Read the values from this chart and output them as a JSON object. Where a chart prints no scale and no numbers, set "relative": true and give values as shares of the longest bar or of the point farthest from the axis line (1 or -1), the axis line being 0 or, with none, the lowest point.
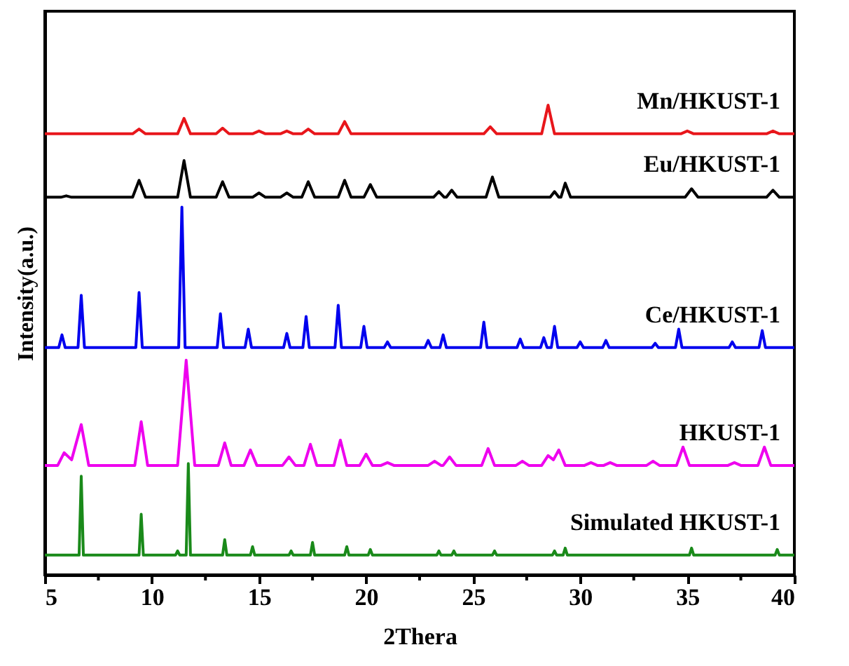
{
  "chart_data": {
    "type": "line",
    "relative": true,
    "xlabel": "2Thera",
    "ylabel": "Intensity(a.u.)",
    "xlim": [
      5,
      40
    ],
    "xticks": [
      5,
      {
        "value": 7.5,
        "label": null
      },
      10,
      {
        "value": 12.5,
        "label": null
      },
      15,
      {
        "value": 17.5,
        "label": null
      },
      20,
      {
        "value": 22.5,
        "label": null
      },
      25,
      {
        "value": 27.5,
        "label": null
      },
      30,
      {
        "value": 32.5,
        "label": null
      },
      35,
      {
        "value": 37.5,
        "label": null
      },
      40
    ],
    "tick_labels": "x",
    "grid": false,
    "legend": false,
    "marker": "none",
    "line_style": "solid",
    "series": [
      {
        "name": "Mn/HKUST-1",
        "color": "#e8161b",
        "x": [
          5,
          9.1,
          9.4,
          9.7,
          11.2,
          11.5,
          11.8,
          13.0,
          13.3,
          13.6,
          14.7,
          15.0,
          15.3,
          16.0,
          16.3,
          16.6,
          17.0,
          17.3,
          17.6,
          18.7,
          19.0,
          19.3,
          25.5,
          25.8,
          26.1,
          28.2,
          28.5,
          28.8,
          34.7,
          35.0,
          35.3,
          38.7,
          39.0,
          39.3,
          40
        ],
        "values": [
          0.939,
          0.939,
          0.949,
          0.939,
          0.939,
          0.972,
          0.939,
          0.939,
          0.951,
          0.939,
          0.939,
          0.945,
          0.939,
          0.939,
          0.945,
          0.939,
          0.939,
          0.949,
          0.939,
          0.939,
          0.965,
          0.939,
          0.939,
          0.954,
          0.939,
          0.939,
          1.0,
          0.939,
          0.939,
          0.945,
          0.939,
          0.939,
          0.945,
          0.939,
          0.939
        ]
      },
      {
        "name": "Eu/HKUST-1",
        "color": "#000000",
        "x": [
          5,
          5.75,
          6.0,
          6.25,
          9.1,
          9.4,
          9.7,
          11.2,
          11.5,
          11.8,
          13.0,
          13.3,
          13.6,
          14.7,
          15.0,
          15.3,
          16.0,
          16.3,
          16.6,
          17.0,
          17.3,
          17.6,
          18.7,
          19.0,
          19.3,
          19.9,
          20.2,
          20.5,
          23.15,
          23.4,
          23.65,
          23.75,
          24.0,
          24.25,
          25.6,
          25.9,
          26.2,
          28.6,
          28.8,
          29.0,
          29.1,
          29.3,
          29.55,
          34.9,
          35.2,
          35.5,
          38.7,
          39.0,
          39.3,
          40
        ],
        "values": [
          0.804,
          0.804,
          0.807,
          0.804,
          0.804,
          0.84,
          0.804,
          0.804,
          0.882,
          0.804,
          0.804,
          0.837,
          0.804,
          0.804,
          0.813,
          0.804,
          0.804,
          0.813,
          0.804,
          0.804,
          0.837,
          0.804,
          0.804,
          0.84,
          0.804,
          0.804,
          0.831,
          0.804,
          0.804,
          0.816,
          0.804,
          0.804,
          0.819,
          0.804,
          0.804,
          0.847,
          0.804,
          0.804,
          0.816,
          0.804,
          0.804,
          0.834,
          0.804,
          0.804,
          0.822,
          0.804,
          0.804,
          0.819,
          0.804,
          0.804
        ]
      },
      {
        "name": "Ce/HKUST-1",
        "color": "#0000ee",
        "x": [
          5,
          5.65,
          5.8,
          5.95,
          6.55,
          6.7,
          6.85,
          9.25,
          9.4,
          9.55,
          11.25,
          11.4,
          11.55,
          13.05,
          13.2,
          13.35,
          14.35,
          14.5,
          14.65,
          16.15,
          16.3,
          16.45,
          17.05,
          17.2,
          17.35,
          18.55,
          18.7,
          18.85,
          19.75,
          19.9,
          20.05,
          20.85,
          21.0,
          21.15,
          22.75,
          22.9,
          23.05,
          23.45,
          23.6,
          23.75,
          25.35,
          25.5,
          25.65,
          27.05,
          27.2,
          27.35,
          28.15,
          28.3,
          28.45,
          28.65,
          28.8,
          28.95,
          29.85,
          30.0,
          30.15,
          31.05,
          31.2,
          31.35,
          33.35,
          33.5,
          33.65,
          34.45,
          34.6,
          34.75,
          36.95,
          37.1,
          37.25,
          38.35,
          38.5,
          38.65,
          40
        ],
        "values": [
          0.484,
          0.484,
          0.511,
          0.484,
          0.484,
          0.595,
          0.484,
          0.484,
          0.601,
          0.484,
          0.484,
          0.783,
          0.484,
          0.484,
          0.556,
          0.484,
          0.484,
          0.523,
          0.484,
          0.484,
          0.514,
          0.484,
          0.484,
          0.55,
          0.484,
          0.484,
          0.574,
          0.484,
          0.484,
          0.529,
          0.484,
          0.484,
          0.496,
          0.484,
          0.484,
          0.499,
          0.484,
          0.484,
          0.511,
          0.484,
          0.484,
          0.538,
          0.484,
          0.484,
          0.502,
          0.484,
          0.484,
          0.505,
          0.484,
          0.484,
          0.529,
          0.484,
          0.484,
          0.496,
          0.484,
          0.484,
          0.499,
          0.484,
          0.484,
          0.493,
          0.484,
          0.484,
          0.523,
          0.484,
          0.484,
          0.496,
          0.484,
          0.484,
          0.52,
          0.484,
          0.484
        ]
      },
      {
        "name": "HKUST-1",
        "color": "#ee00ee",
        "x": [
          5,
          5.6,
          5.9,
          6.25,
          6.7,
          7.05,
          9.2,
          9.5,
          9.8,
          11.2,
          11.6,
          12.0,
          13.1,
          13.4,
          13.7,
          14.3,
          14.6,
          14.9,
          16.1,
          16.4,
          16.7,
          17.1,
          17.4,
          17.7,
          18.5,
          18.8,
          19.1,
          19.7,
          20.0,
          20.3,
          20.7,
          21.0,
          21.3,
          22.9,
          23.2,
          23.5,
          23.6,
          23.9,
          24.2,
          25.4,
          25.7,
          26.0,
          27.0,
          27.3,
          27.6,
          28.2,
          28.5,
          28.75,
          29.0,
          29.3,
          30.2,
          30.5,
          30.8,
          31.1,
          31.4,
          31.7,
          33.1,
          33.4,
          33.7,
          34.5,
          34.8,
          35.1,
          36.9,
          37.2,
          37.5,
          38.3,
          38.6,
          38.9,
          40
        ],
        "values": [
          0.233,
          0.233,
          0.26,
          0.245,
          0.32,
          0.233,
          0.233,
          0.326,
          0.233,
          0.233,
          0.457,
          0.233,
          0.233,
          0.281,
          0.233,
          0.233,
          0.266,
          0.233,
          0.233,
          0.251,
          0.233,
          0.233,
          0.278,
          0.233,
          0.233,
          0.287,
          0.233,
          0.233,
          0.257,
          0.233,
          0.233,
          0.239,
          0.233,
          0.233,
          0.242,
          0.233,
          0.233,
          0.251,
          0.233,
          0.233,
          0.269,
          0.233,
          0.233,
          0.242,
          0.233,
          0.233,
          0.254,
          0.245,
          0.266,
          0.233,
          0.233,
          0.239,
          0.233,
          0.233,
          0.239,
          0.233,
          0.233,
          0.242,
          0.233,
          0.233,
          0.272,
          0.233,
          0.233,
          0.239,
          0.233,
          0.233,
          0.272,
          0.233,
          0.233
        ]
      },
      {
        "name": "Simulated HKUST-1",
        "color": "#1a8a1a",
        "x": [
          5,
          6.6,
          6.7,
          6.8,
          9.4,
          9.5,
          9.6,
          11.1,
          11.2,
          11.3,
          11.6,
          11.7,
          11.8,
          13.3,
          13.4,
          13.5,
          14.6,
          14.7,
          14.8,
          16.4,
          16.5,
          16.6,
          17.4,
          17.5,
          17.6,
          19.0,
          19.1,
          19.2,
          20.1,
          20.2,
          20.3,
          23.3,
          23.4,
          23.5,
          24.0,
          24.1,
          24.2,
          25.9,
          26.0,
          26.1,
          28.7,
          28.8,
          28.9,
          29.2,
          29.3,
          29.4,
          35.1,
          35.2,
          35.3,
          39.1,
          39.2,
          39.3,
          40
        ],
        "values": [
          0.042,
          0.042,
          0.21,
          0.042,
          0.042,
          0.129,
          0.042,
          0.042,
          0.051,
          0.042,
          0.042,
          0.237,
          0.042,
          0.042,
          0.075,
          0.042,
          0.042,
          0.06,
          0.042,
          0.042,
          0.051,
          0.042,
          0.042,
          0.069,
          0.042,
          0.042,
          0.06,
          0.042,
          0.042,
          0.054,
          0.042,
          0.042,
          0.051,
          0.042,
          0.042,
          0.051,
          0.042,
          0.042,
          0.051,
          0.042,
          0.042,
          0.051,
          0.042,
          0.042,
          0.057,
          0.042,
          0.042,
          0.057,
          0.042,
          0.042,
          0.054,
          0.042,
          0.042
        ]
      }
    ]
  }
}
